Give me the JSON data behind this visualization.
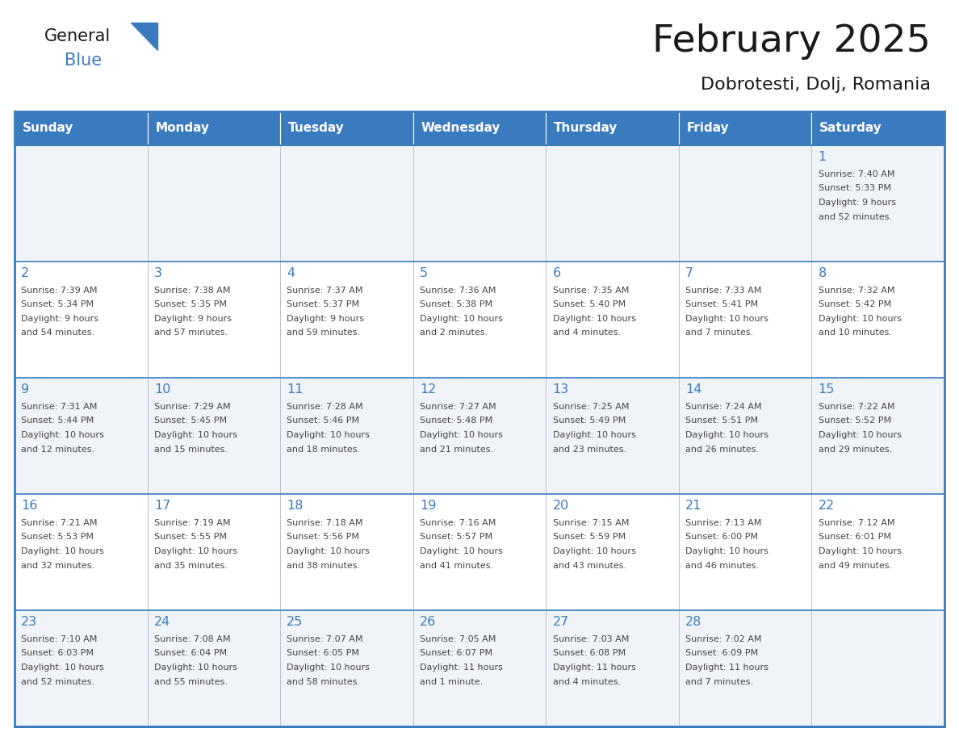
{
  "title": "February 2025",
  "subtitle": "Dobrotesti, Dolj, Romania",
  "header_color": "#3a7bbf",
  "header_text_color": "#ffffff",
  "cell_bg_even": "#f0f4f8",
  "cell_bg_odd": "#ffffff",
  "day_number_color": "#3a7bbf",
  "info_text_color": "#444444",
  "border_color": "#3a7bbf",
  "days_of_week": [
    "Sunday",
    "Monday",
    "Tuesday",
    "Wednesday",
    "Thursday",
    "Friday",
    "Saturday"
  ],
  "weeks": [
    [
      null,
      null,
      null,
      null,
      null,
      null,
      {
        "day": 1,
        "sunrise": "7:40 AM",
        "sunset": "5:33 PM",
        "daylight": "9 hours and 52 minutes."
      }
    ],
    [
      {
        "day": 2,
        "sunrise": "7:39 AM",
        "sunset": "5:34 PM",
        "daylight": "9 hours and 54 minutes."
      },
      {
        "day": 3,
        "sunrise": "7:38 AM",
        "sunset": "5:35 PM",
        "daylight": "9 hours and 57 minutes."
      },
      {
        "day": 4,
        "sunrise": "7:37 AM",
        "sunset": "5:37 PM",
        "daylight": "9 hours and 59 minutes."
      },
      {
        "day": 5,
        "sunrise": "7:36 AM",
        "sunset": "5:38 PM",
        "daylight": "10 hours and 2 minutes."
      },
      {
        "day": 6,
        "sunrise": "7:35 AM",
        "sunset": "5:40 PM",
        "daylight": "10 hours and 4 minutes."
      },
      {
        "day": 7,
        "sunrise": "7:33 AM",
        "sunset": "5:41 PM",
        "daylight": "10 hours and 7 minutes."
      },
      {
        "day": 8,
        "sunrise": "7:32 AM",
        "sunset": "5:42 PM",
        "daylight": "10 hours and 10 minutes."
      }
    ],
    [
      {
        "day": 9,
        "sunrise": "7:31 AM",
        "sunset": "5:44 PM",
        "daylight": "10 hours and 12 minutes."
      },
      {
        "day": 10,
        "sunrise": "7:29 AM",
        "sunset": "5:45 PM",
        "daylight": "10 hours and 15 minutes."
      },
      {
        "day": 11,
        "sunrise": "7:28 AM",
        "sunset": "5:46 PM",
        "daylight": "10 hours and 18 minutes."
      },
      {
        "day": 12,
        "sunrise": "7:27 AM",
        "sunset": "5:48 PM",
        "daylight": "10 hours and 21 minutes."
      },
      {
        "day": 13,
        "sunrise": "7:25 AM",
        "sunset": "5:49 PM",
        "daylight": "10 hours and 23 minutes."
      },
      {
        "day": 14,
        "sunrise": "7:24 AM",
        "sunset": "5:51 PM",
        "daylight": "10 hours and 26 minutes."
      },
      {
        "day": 15,
        "sunrise": "7:22 AM",
        "sunset": "5:52 PM",
        "daylight": "10 hours and 29 minutes."
      }
    ],
    [
      {
        "day": 16,
        "sunrise": "7:21 AM",
        "sunset": "5:53 PM",
        "daylight": "10 hours and 32 minutes."
      },
      {
        "day": 17,
        "sunrise": "7:19 AM",
        "sunset": "5:55 PM",
        "daylight": "10 hours and 35 minutes."
      },
      {
        "day": 18,
        "sunrise": "7:18 AM",
        "sunset": "5:56 PM",
        "daylight": "10 hours and 38 minutes."
      },
      {
        "day": 19,
        "sunrise": "7:16 AM",
        "sunset": "5:57 PM",
        "daylight": "10 hours and 41 minutes."
      },
      {
        "day": 20,
        "sunrise": "7:15 AM",
        "sunset": "5:59 PM",
        "daylight": "10 hours and 43 minutes."
      },
      {
        "day": 21,
        "sunrise": "7:13 AM",
        "sunset": "6:00 PM",
        "daylight": "10 hours and 46 minutes."
      },
      {
        "day": 22,
        "sunrise": "7:12 AM",
        "sunset": "6:01 PM",
        "daylight": "10 hours and 49 minutes."
      }
    ],
    [
      {
        "day": 23,
        "sunrise": "7:10 AM",
        "sunset": "6:03 PM",
        "daylight": "10 hours and 52 minutes."
      },
      {
        "day": 24,
        "sunrise": "7:08 AM",
        "sunset": "6:04 PM",
        "daylight": "10 hours and 55 minutes."
      },
      {
        "day": 25,
        "sunrise": "7:07 AM",
        "sunset": "6:05 PM",
        "daylight": "10 hours and 58 minutes."
      },
      {
        "day": 26,
        "sunrise": "7:05 AM",
        "sunset": "6:07 PM",
        "daylight": "11 hours and 1 minute."
      },
      {
        "day": 27,
        "sunrise": "7:03 AM",
        "sunset": "6:08 PM",
        "daylight": "11 hours and 4 minutes."
      },
      {
        "day": 28,
        "sunrise": "7:02 AM",
        "sunset": "6:09 PM",
        "daylight": "11 hours and 7 minutes."
      },
      null
    ]
  ]
}
